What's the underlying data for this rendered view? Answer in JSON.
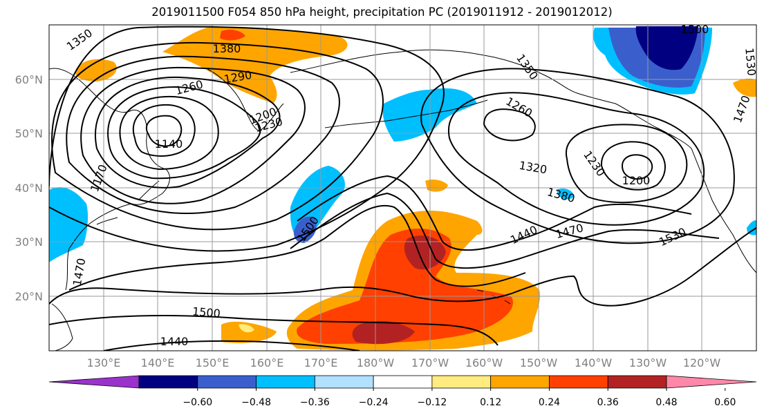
{
  "title": "2019011500 F054 850 hPa height, precipitation PC (2019011912 - 2019012012)",
  "lat_labels": [
    "60°N",
    "50°N",
    "40°N",
    "30°N",
    "20°N"
  ],
  "lon_labels": [
    "130°E",
    "140°E",
    "150°E",
    "160°E",
    "170°E",
    "180°W",
    "170°W",
    "160°W",
    "150°W",
    "140°W",
    "130°W",
    "120°W"
  ],
  "contour_labels": [
    "1350",
    "1380",
    "1290",
    "1260",
    "1200",
    "1230",
    "1140",
    "1170",
    "1350",
    "1260",
    "1320",
    "1230",
    "1200",
    "1380",
    "1440",
    "1470",
    "1530",
    "1500",
    "1530",
    "1500",
    "1470",
    "1500",
    "1440",
    "1470"
  ],
  "colorbar": {
    "colors": [
      "#9933cc",
      "#000080",
      "#3a5fcd",
      "#00bfff",
      "#b2e0ff",
      "#ffffff",
      "#ffeb80",
      "#ffa500",
      "#ff4000",
      "#b22222",
      "#ff88aa"
    ],
    "tick_labels": [
      "−0.60",
      "−0.48",
      "−0.36",
      "−0.24",
      "−0.12",
      "0.12",
      "0.24",
      "0.36",
      "0.48",
      "0.60"
    ]
  }
}
